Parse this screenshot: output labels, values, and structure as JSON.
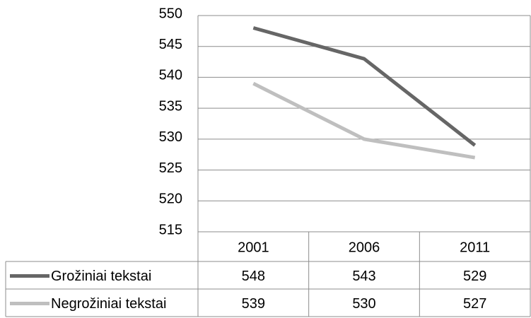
{
  "chart_data": {
    "type": "line",
    "categories": [
      "2001",
      "2006",
      "2011"
    ],
    "series": [
      {
        "name": "Grožiniai tekstai",
        "color": "#666666",
        "values": [
          548,
          543,
          529
        ]
      },
      {
        "name": "Negrožiniai tekstai",
        "color": "#bfbfbf",
        "values": [
          539,
          530,
          527
        ]
      }
    ],
    "ylim": [
      515,
      550
    ],
    "yticks": [
      515,
      520,
      525,
      530,
      535,
      540,
      545,
      550
    ],
    "grid": true
  }
}
